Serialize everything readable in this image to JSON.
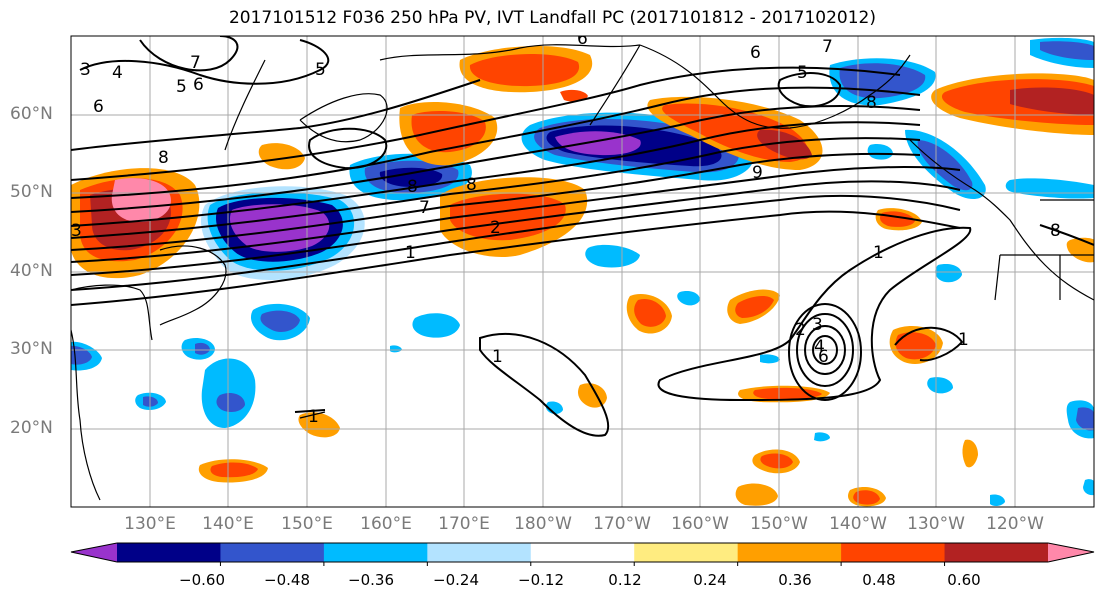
{
  "title": "2017101512 F036 250 hPa PV, IVT Landfall PC (2017101812 - 2017102012)",
  "lat_labels": [
    "60°N",
    "50°N",
    "40°N",
    "30°N",
    "20°N"
  ],
  "lon_labels": [
    "130°E",
    "140°E",
    "150°E",
    "160°E",
    "170°E",
    "180°W",
    "170°W",
    "160°W",
    "150°W",
    "140°W",
    "130°W",
    "120°W"
  ],
  "colorbar": {
    "colors": [
      "#9933cc",
      "#000088",
      "#3355cc",
      "#00bbff",
      "#b3e3ff",
      "#ffffff",
      "#ffec80",
      "#ff9f00",
      "#ff4400",
      "#b22222",
      "#ff88aa"
    ],
    "tick_labels": [
      "−0.60",
      "−0.48",
      "−0.36",
      "−0.24",
      "−0.12",
      "0.12",
      "0.24",
      "0.36",
      "0.48",
      "0.60"
    ]
  },
  "contour_labels": [
    "6",
    "7",
    "6",
    "5",
    "8",
    "3",
    "4",
    "5",
    "6",
    "6",
    "8",
    "7",
    "3",
    "5",
    "8",
    "7",
    "1",
    "2",
    "8",
    "9",
    "1",
    "2",
    "3",
    "4",
    "6",
    "1",
    "1",
    "1",
    "8"
  ]
}
